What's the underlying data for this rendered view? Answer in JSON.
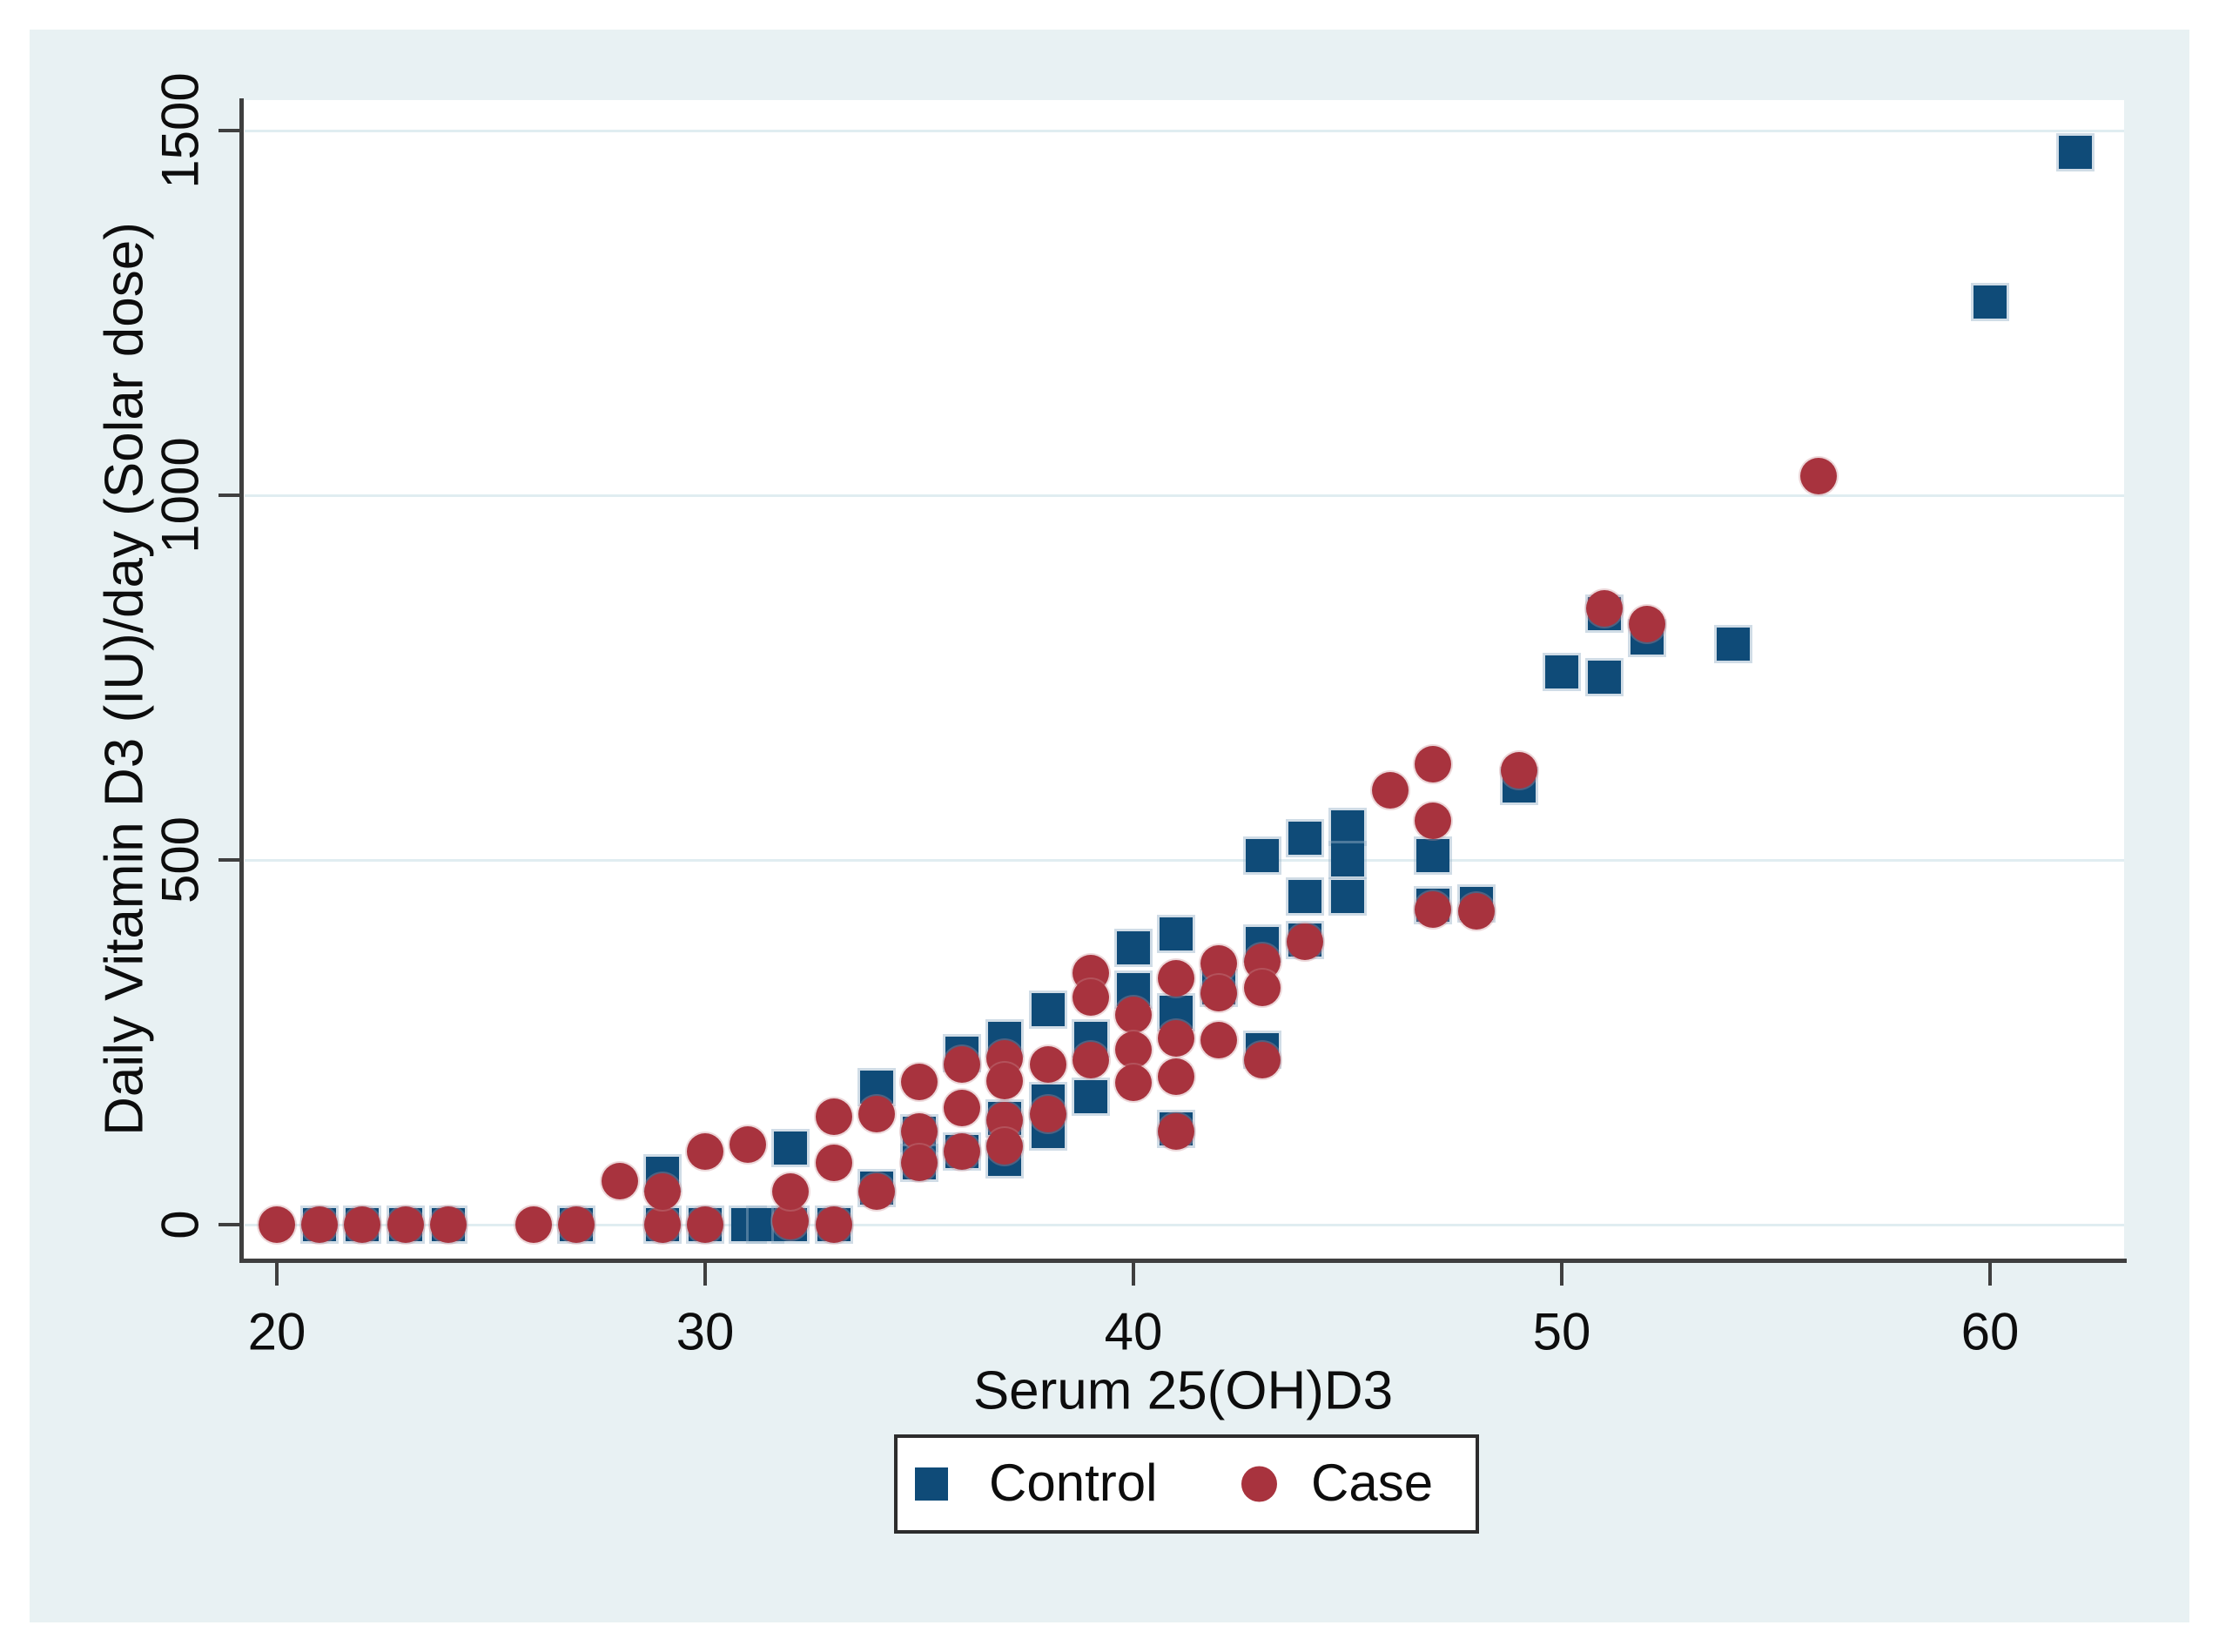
{
  "figure": {
    "background_color": "#e8f1f3",
    "plot_background_color": "#ffffff",
    "gridline_color": "#e0edf1",
    "axis_color": "#3f3f3f",
    "text_color": "#0d0d0d",
    "control_color": "#0f4b78",
    "case_color": "#a8333e"
  },
  "x_axis": {
    "label": "Serum 25(OH)D3",
    "ticks": [
      20,
      30,
      40,
      50,
      60
    ]
  },
  "y_axis": {
    "label": "Daily Vitamin D3 (IU)/day (Solar dose)",
    "ticks": [
      0,
      500,
      1000,
      1500
    ]
  },
  "legend": {
    "items": [
      {
        "label": "Control",
        "marker": "square",
        "color": "#0f4b78"
      },
      {
        "label": "Case",
        "marker": "circle",
        "color": "#a8333e"
      }
    ]
  },
  "chart_data": {
    "type": "scatter",
    "title": "",
    "xlabel": "Serum 25(OH)D3",
    "ylabel": "Daily Vitamin D3 (IU)/day (Solar dose)",
    "xlim": [
      19.2,
      63.1
    ],
    "ylim": [
      -47,
      1541
    ],
    "grid": "horizontal gridlines at y ticks",
    "legend_position": "bottom center, boxed",
    "series": [
      {
        "name": "Control",
        "marker": "square",
        "color": "#0f4b78",
        "points": [
          [
            21,
            0
          ],
          [
            22,
            0
          ],
          [
            23,
            0
          ],
          [
            24,
            0
          ],
          [
            27,
            0
          ],
          [
            29,
            0
          ],
          [
            30,
            0
          ],
          [
            31,
            0
          ],
          [
            31.4,
            0
          ],
          [
            32,
            0
          ],
          [
            33,
            0
          ],
          [
            29,
            70
          ],
          [
            32,
            105
          ],
          [
            34,
            50
          ],
          [
            34,
            188
          ],
          [
            35,
            125
          ],
          [
            35,
            85
          ],
          [
            36,
            235
          ],
          [
            36,
            100
          ],
          [
            37,
            255
          ],
          [
            37,
            145
          ],
          [
            37,
            90
          ],
          [
            38,
            295
          ],
          [
            38,
            170
          ],
          [
            38,
            128
          ],
          [
            39,
            255
          ],
          [
            39,
            175
          ],
          [
            40,
            380
          ],
          [
            40,
            322
          ],
          [
            41,
            398
          ],
          [
            41,
            291
          ],
          [
            41,
            131
          ],
          [
            42,
            325
          ],
          [
            43,
            506
          ],
          [
            43,
            385
          ],
          [
            43,
            240
          ],
          [
            44,
            530
          ],
          [
            44,
            450
          ],
          [
            44,
            390
          ],
          [
            45,
            545
          ],
          [
            45,
            500
          ],
          [
            45,
            450
          ],
          [
            47,
            506
          ],
          [
            47,
            438
          ],
          [
            48,
            440
          ],
          [
            49,
            601
          ],
          [
            50,
            758
          ],
          [
            51,
            838
          ],
          [
            51,
            751
          ],
          [
            52,
            804
          ],
          [
            54,
            796
          ],
          [
            60,
            1265
          ],
          [
            62,
            1470
          ]
        ]
      },
      {
        "name": "Case",
        "marker": "circle",
        "color": "#a8333e",
        "points": [
          [
            20,
            0
          ],
          [
            21,
            0
          ],
          [
            22,
            0
          ],
          [
            23,
            0
          ],
          [
            24,
            0
          ],
          [
            26,
            0
          ],
          [
            27,
            0
          ],
          [
            29,
            0
          ],
          [
            30,
            0
          ],
          [
            32,
            5
          ],
          [
            33,
            0
          ],
          [
            28,
            60
          ],
          [
            29,
            45
          ],
          [
            30,
            100
          ],
          [
            31,
            110
          ],
          [
            32,
            45
          ],
          [
            33,
            148
          ],
          [
            33,
            85
          ],
          [
            34,
            152
          ],
          [
            34,
            45
          ],
          [
            35,
            196
          ],
          [
            35,
            128
          ],
          [
            35,
            85
          ],
          [
            36,
            220
          ],
          [
            36,
            160
          ],
          [
            36,
            100
          ],
          [
            37,
            228
          ],
          [
            37,
            197
          ],
          [
            37,
            143
          ],
          [
            37,
            107
          ],
          [
            38,
            220
          ],
          [
            38,
            152
          ],
          [
            39,
            345
          ],
          [
            39,
            312
          ],
          [
            39,
            225
          ],
          [
            40,
            288
          ],
          [
            40,
            240
          ],
          [
            40,
            195
          ],
          [
            41,
            338
          ],
          [
            41,
            255
          ],
          [
            41,
            203
          ],
          [
            41,
            128
          ],
          [
            42,
            358
          ],
          [
            42,
            318
          ],
          [
            42,
            253
          ],
          [
            43,
            360
          ],
          [
            43,
            325
          ],
          [
            43,
            225
          ],
          [
            44,
            388
          ],
          [
            46,
            595
          ],
          [
            47,
            631
          ],
          [
            47,
            554
          ],
          [
            47,
            432
          ],
          [
            48,
            430
          ],
          [
            49,
            623
          ],
          [
            51,
            845
          ],
          [
            52,
            823
          ],
          [
            56,
            1026
          ]
        ]
      }
    ]
  }
}
